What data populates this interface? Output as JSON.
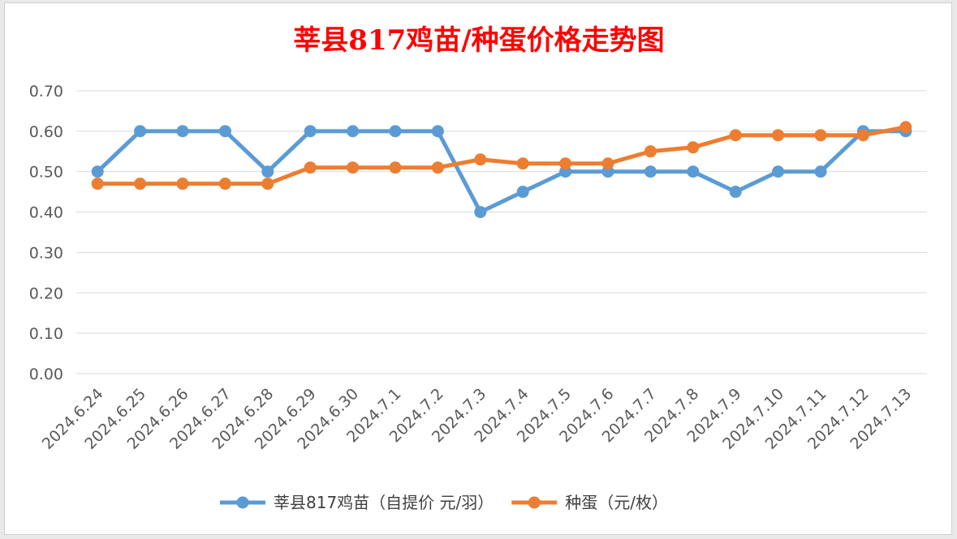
{
  "chart_data": {
    "type": "line",
    "title": "莘县817鸡苗/种蛋价格走势图",
    "title_color": "#ff0000",
    "categories": [
      "2024.6.24",
      "2024.6.25",
      "2024.6.26",
      "2024.6.27",
      "2024.6.28",
      "2024.6.29",
      "2024.6.30",
      "2024.7.1",
      "2024.7.2",
      "2024.7.3",
      "2024.7.4",
      "2024.7.5",
      "2024.7.6",
      "2024.7.7",
      "2024.7.8",
      "2024.7.9",
      "2024.7.10",
      "2024.7.11",
      "2024.7.12",
      "2024.7.13"
    ],
    "yticks": [
      "0.00",
      "0.10",
      "0.20",
      "0.30",
      "0.40",
      "0.50",
      "0.60",
      "0.70"
    ],
    "ylim": [
      0,
      0.7
    ],
    "grid": true,
    "legend_position": "bottom",
    "series": [
      {
        "name": "莘县817鸡苗（自提价 元/羽）",
        "color": "#5b9bd5",
        "values": [
          0.5,
          0.6,
          0.6,
          0.6,
          0.5,
          0.6,
          0.6,
          0.6,
          0.6,
          0.4,
          0.45,
          0.5,
          0.5,
          0.5,
          0.5,
          0.45,
          0.5,
          0.5,
          0.6,
          0.6
        ]
      },
      {
        "name": "种蛋（元/枚）",
        "color": "#ed7d31",
        "values": [
          0.47,
          0.47,
          0.47,
          0.47,
          0.47,
          0.51,
          0.51,
          0.51,
          0.51,
          0.53,
          0.52,
          0.52,
          0.52,
          0.55,
          0.56,
          0.59,
          0.59,
          0.59,
          0.59,
          0.61
        ]
      }
    ]
  }
}
